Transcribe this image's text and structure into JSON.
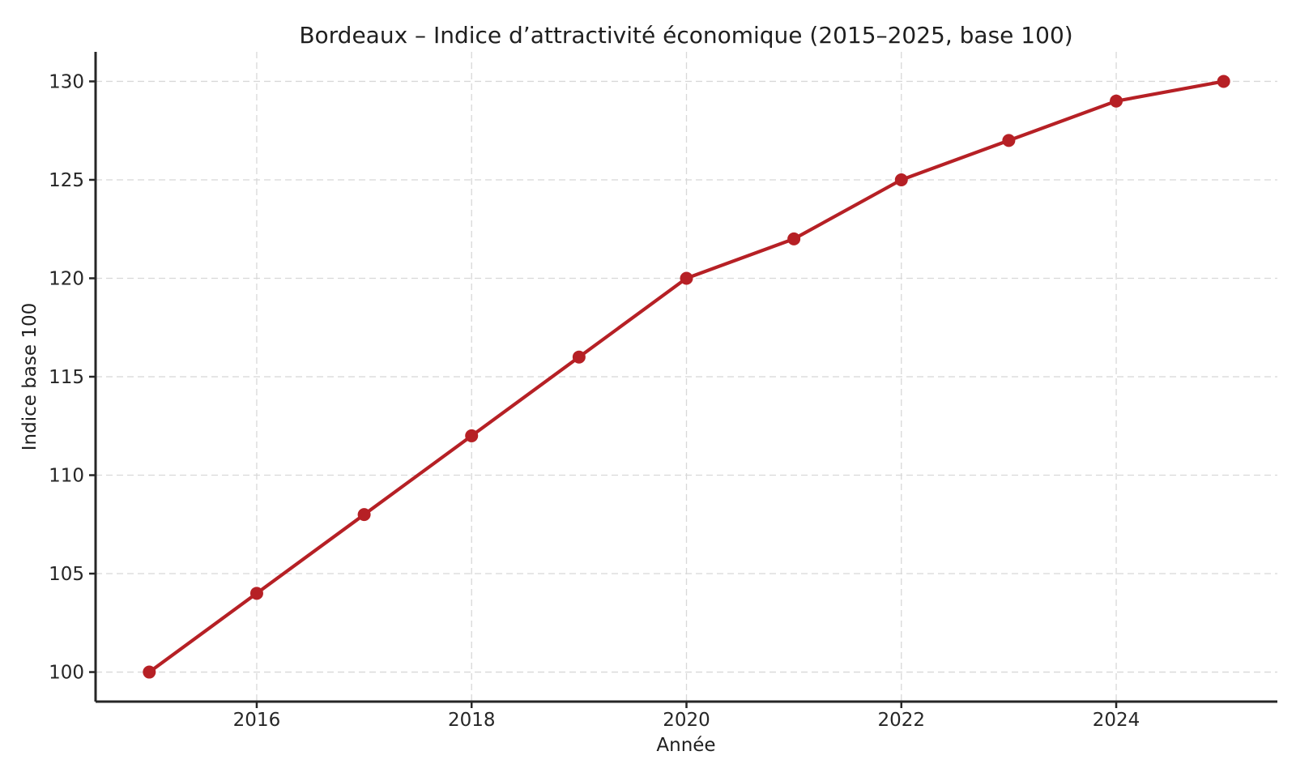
{
  "chart_data": {
    "type": "line",
    "title": "Bordeaux – Indice d’attractivité économique (2015–2025, base 100)",
    "xlabel": "Année",
    "ylabel": "Indice base 100",
    "x": [
      2015,
      2016,
      2017,
      2018,
      2019,
      2020,
      2021,
      2022,
      2023,
      2024,
      2025
    ],
    "values": [
      100,
      104,
      108,
      112,
      116,
      120,
      122,
      125,
      127,
      129,
      130
    ],
    "xticks": [
      2016,
      2018,
      2020,
      2022,
      2024
    ],
    "yticks": [
      100,
      105,
      110,
      115,
      120,
      125,
      130
    ],
    "xtick_labels": [
      "2016",
      "2018",
      "2020",
      "2022",
      "2024"
    ],
    "ytick_labels": [
      "100",
      "105",
      "110",
      "115",
      "120",
      "125",
      "130"
    ],
    "xlim": [
      2014.5,
      2025.5
    ],
    "ylim": [
      98.5,
      131.5
    ],
    "grid": true,
    "grid_style": "dashed",
    "legend": false,
    "line_color": "#b62025",
    "marker": "circle",
    "grid_color": "#d8d8d8",
    "spine_color": "#262626",
    "text_color": "#1f1f1f"
  }
}
